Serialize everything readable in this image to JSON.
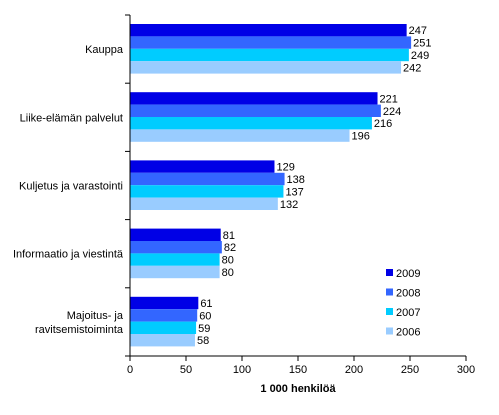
{
  "chart_data": {
    "type": "bar",
    "orientation": "horizontal",
    "xlabel": "1 000 henkilöä",
    "ylabel": "",
    "title": "",
    "xlim": [
      0,
      300
    ],
    "xticks": [
      0,
      50,
      100,
      150,
      200,
      250,
      300
    ],
    "grid": false,
    "legend_position": "lower-right",
    "categories": [
      "Kauppa",
      "Liike-elämän palvelut",
      "Kuljetus ja varastointi",
      "Informaatio ja viestintä",
      "Majoitus- ja ravitsemistoiminta"
    ],
    "category_lines": [
      [
        "Kauppa"
      ],
      [
        "Liike-elämän palvelut"
      ],
      [
        "Kuljetus ja varastointi"
      ],
      [
        "Informaatio ja viestintä"
      ],
      [
        "Majoitus- ja",
        "ravitsemistoiminta"
      ]
    ],
    "series": [
      {
        "name": "2009",
        "color": "#0000e6",
        "values": [
          247,
          221,
          129,
          81,
          61
        ]
      },
      {
        "name": "2008",
        "color": "#3366ff",
        "values": [
          251,
          224,
          138,
          82,
          60
        ]
      },
      {
        "name": "2007",
        "color": "#00ccff",
        "values": [
          249,
          216,
          137,
          80,
          59
        ]
      },
      {
        "name": "2006",
        "color": "#99ccff",
        "values": [
          242,
          196,
          132,
          80,
          58
        ]
      }
    ]
  }
}
